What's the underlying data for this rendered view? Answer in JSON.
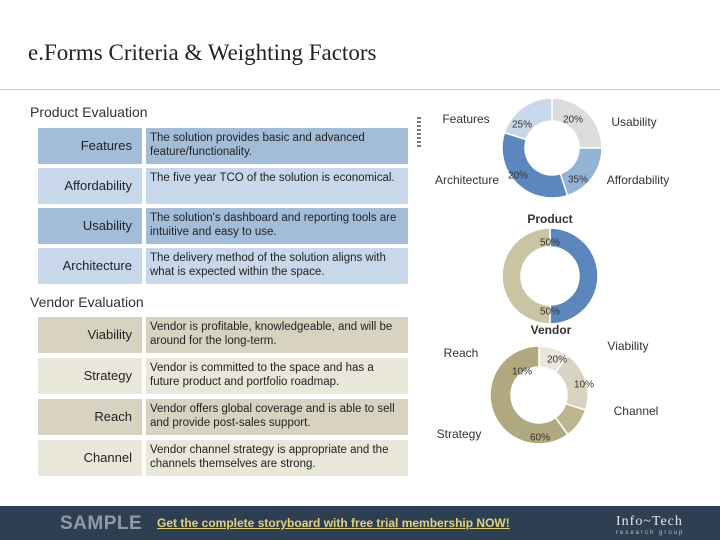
{
  "title": "e.Forms Criteria & Weighting Factors",
  "product_evaluation": {
    "heading": "Product Evaluation",
    "rows": [
      {
        "label": "Features",
        "description": "The solution provides basic and advanced feature/functionality."
      },
      {
        "label": "Affordability",
        "description": "The five year TCO of the solution is economical."
      },
      {
        "label": "Usability",
        "description": "The solution's dashboard and reporting tools are intuitive and easy to use."
      },
      {
        "label": "Architecture",
        "description": "The delivery method of the solution aligns with what is expected within the space."
      }
    ]
  },
  "vendor_evaluation": {
    "heading": "Vendor Evaluation",
    "rows": [
      {
        "label": "Viability",
        "description": "Vendor is profitable, knowledgeable, and will be around for the long-term."
      },
      {
        "label": "Strategy",
        "description": "Vendor is committed to the space and has a future product and portfolio roadmap."
      },
      {
        "label": "Reach",
        "description": "Vendor offers global coverage and is able to sell and provide post-sales support."
      },
      {
        "label": "Channel",
        "description": "Vendor channel strategy is appropriate and the channels themselves are strong."
      }
    ]
  },
  "chart_data": [
    {
      "type": "pie",
      "title": "",
      "categories": [
        "Features",
        "Usability",
        "Affordability",
        "Architecture"
      ],
      "values": [
        25,
        20,
        35,
        20
      ],
      "value_labels": [
        "25%",
        "20%",
        "35%",
        "20%"
      ],
      "colors": [
        "#dcdcdc",
        "#94b4d6",
        "#5c87bd",
        "#c8d8ea"
      ]
    },
    {
      "type": "pie",
      "title": "",
      "categories": [
        "Product",
        "Vendor"
      ],
      "values": [
        50,
        50
      ],
      "value_labels": [
        "50%",
        "50%"
      ],
      "category_labels": [
        "Product",
        "Vendor"
      ],
      "colors": [
        "#5c87bd",
        "#c9c4a3"
      ]
    },
    {
      "type": "pie",
      "title": "",
      "categories": [
        "Reach",
        "Viability",
        "Channel",
        "Strategy"
      ],
      "values": [
        10,
        20,
        10,
        60
      ],
      "value_labels": [
        "10%",
        "20%",
        "10%",
        "60%"
      ],
      "colors": [
        "#e9e6da",
        "#d8d3c0",
        "#bdb68f",
        "#b0a97f"
      ]
    }
  ],
  "footer": {
    "sample": "SAMPLE",
    "cta": "Get the complete storyboard with free trial membership NOW!",
    "brand": "Info~Tech",
    "brand_sub": "research group"
  }
}
